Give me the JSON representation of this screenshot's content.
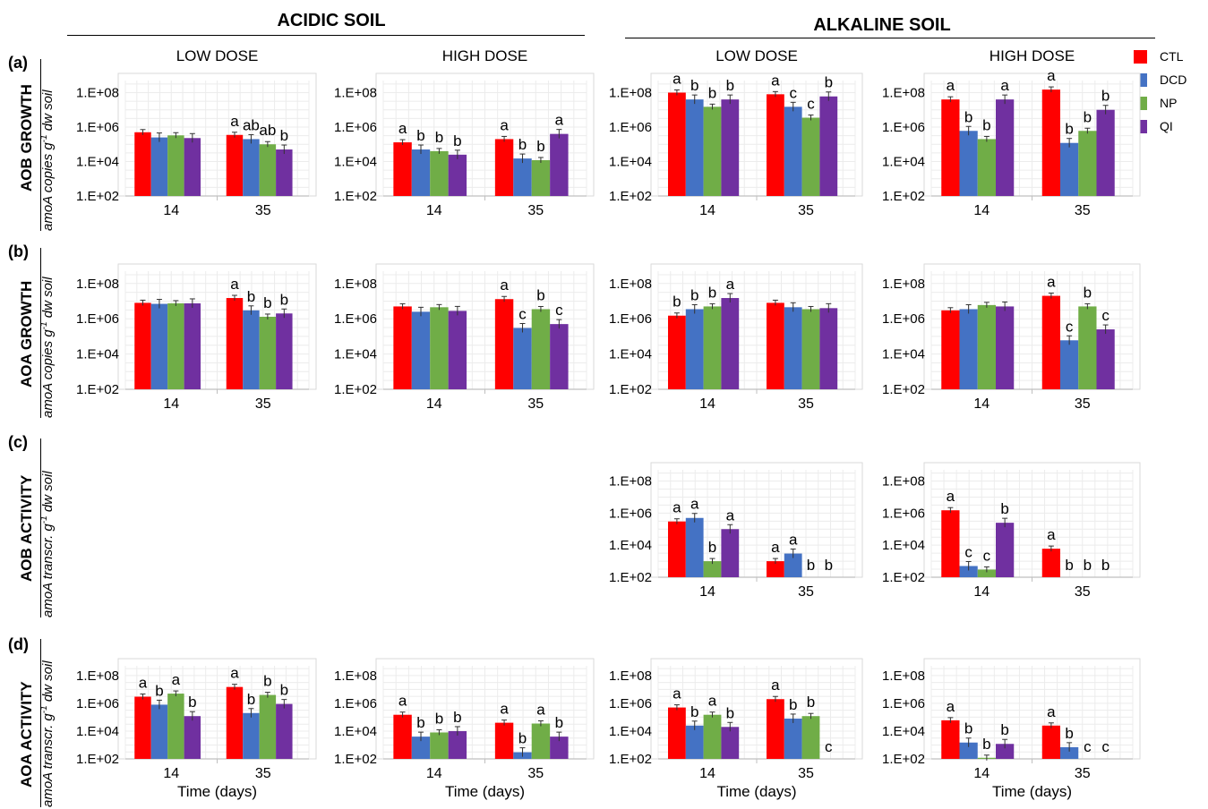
{
  "headers": {
    "acidic": "ACIDIC SOIL",
    "alkaline": "ALKALINE SOIL"
  },
  "rows": [
    {
      "letter": "(a)",
      "title": "AOB GROWTH",
      "ylabel_main": "amoA copies g",
      "ylabel_sup": "-1",
      "ylabel_tail": " dw soil"
    },
    {
      "letter": "(b)",
      "title": "AOA GROWTH",
      "ylabel_main": "amoA copies g",
      "ylabel_sup": "-1",
      "ylabel_tail": " dw soil"
    },
    {
      "letter": "(c)",
      "title": "AOB ACTIVITY",
      "ylabel_main": "amoA transcr. g",
      "ylabel_sup": "-1",
      "ylabel_tail": " dw soil"
    },
    {
      "letter": "(d)",
      "title": "AOA ACTIVITY",
      "ylabel_main": "amoA transcr. g",
      "ylabel_sup": "-1",
      "ylabel_tail": " dw soil"
    }
  ],
  "legend": [
    {
      "label": "CTL",
      "color": "#ff0000"
    },
    {
      "label": "DCD",
      "color": "#4472c4"
    },
    {
      "label": "NP",
      "color": "#70ad47"
    },
    {
      "label": "QI",
      "color": "#7030a0"
    }
  ],
  "chart_data": [
    {
      "type": "bar",
      "row": "a",
      "soil": "acidic",
      "title": "LOW DOSE",
      "xlabel": "",
      "y_scale": "log",
      "yticks": [
        "1.E+02",
        "1.E+04",
        "1.E+06",
        "1.E+08"
      ],
      "categories": [
        "14",
        "35"
      ],
      "series": [
        {
          "name": "CTL",
          "values": [
            500000,
            350000
          ],
          "letters": [
            "",
            "a"
          ]
        },
        {
          "name": "DCD",
          "values": [
            250000,
            200000
          ],
          "letters": [
            "",
            "ab"
          ]
        },
        {
          "name": "NP",
          "values": [
            330000,
            100000
          ],
          "letters": [
            "",
            "ab"
          ]
        },
        {
          "name": "QI",
          "values": [
            230000,
            50000
          ],
          "letters": [
            "",
            "b"
          ]
        }
      ]
    },
    {
      "type": "bar",
      "row": "a",
      "soil": "acidic",
      "title": "HIGH DOSE",
      "xlabel": "",
      "y_scale": "log",
      "yticks": [
        "1.E+02",
        "1.E+04",
        "1.E+06",
        "1.E+08"
      ],
      "categories": [
        "14",
        "35"
      ],
      "series": [
        {
          "name": "CTL",
          "values": [
            130000,
            200000
          ],
          "letters": [
            "a",
            "a"
          ]
        },
        {
          "name": "DCD",
          "values": [
            50000,
            15000
          ],
          "letters": [
            "b",
            "b"
          ]
        },
        {
          "name": "NP",
          "values": [
            40000,
            12000
          ],
          "letters": [
            "b",
            "b"
          ]
        },
        {
          "name": "QI",
          "values": [
            25000,
            400000
          ],
          "letters": [
            "b",
            "a"
          ]
        }
      ]
    },
    {
      "type": "bar",
      "row": "a",
      "soil": "alkaline",
      "title": "LOW DOSE",
      "xlabel": "",
      "y_scale": "log",
      "yticks": [
        "1.E+02",
        "1.E+04",
        "1.E+06",
        "1.E+08"
      ],
      "categories": [
        "14",
        "35"
      ],
      "series": [
        {
          "name": "CTL",
          "values": [
            100000000,
            80000000
          ],
          "letters": [
            "a",
            "a"
          ]
        },
        {
          "name": "DCD",
          "values": [
            40000000,
            15000000
          ],
          "letters": [
            "b",
            "c"
          ]
        },
        {
          "name": "NP",
          "values": [
            15000000,
            3500000
          ],
          "letters": [
            "b",
            "c"
          ]
        },
        {
          "name": "QI",
          "values": [
            40000000,
            60000000
          ],
          "letters": [
            "b",
            "b"
          ]
        }
      ]
    },
    {
      "type": "bar",
      "row": "a",
      "soil": "alkaline",
      "title": "HIGH DOSE",
      "xlabel": "",
      "y_scale": "log",
      "yticks": [
        "1.E+02",
        "1.E+04",
        "1.E+06",
        "1.E+08"
      ],
      "categories": [
        "14",
        "35"
      ],
      "series": [
        {
          "name": "CTL",
          "values": [
            40000000,
            150000000
          ],
          "letters": [
            "a",
            "a"
          ]
        },
        {
          "name": "DCD",
          "values": [
            600000,
            120000
          ],
          "letters": [
            "b",
            "b"
          ]
        },
        {
          "name": "NP",
          "values": [
            200000,
            600000
          ],
          "letters": [
            "b",
            "b"
          ]
        },
        {
          "name": "QI",
          "values": [
            40000000,
            10000000
          ],
          "letters": [
            "a",
            "b"
          ]
        }
      ]
    },
    {
      "type": "bar",
      "row": "b",
      "soil": "acidic",
      "title": "",
      "xlabel": "",
      "y_scale": "log",
      "yticks": [
        "1.E+02",
        "1.E+04",
        "1.E+06",
        "1.E+08"
      ],
      "categories": [
        "14",
        "35"
      ],
      "series": [
        {
          "name": "CTL",
          "values": [
            8000000,
            15000000
          ],
          "letters": [
            "",
            "a"
          ]
        },
        {
          "name": "DCD",
          "values": [
            7000000,
            3000000
          ],
          "letters": [
            "",
            "b"
          ]
        },
        {
          "name": "NP",
          "values": [
            7500000,
            1300000
          ],
          "letters": [
            "",
            "b"
          ]
        },
        {
          "name": "QI",
          "values": [
            7500000,
            2000000
          ],
          "letters": [
            "",
            "b"
          ]
        }
      ]
    },
    {
      "type": "bar",
      "row": "b",
      "soil": "acidic",
      "title": "",
      "xlabel": "",
      "y_scale": "log",
      "yticks": [
        "1.E+02",
        "1.E+04",
        "1.E+06",
        "1.E+08"
      ],
      "categories": [
        "14",
        "35"
      ],
      "series": [
        {
          "name": "CTL",
          "values": [
            5000000,
            13000000
          ],
          "letters": [
            "",
            "a"
          ]
        },
        {
          "name": "DCD",
          "values": [
            2500000,
            300000
          ],
          "letters": [
            "",
            "c"
          ]
        },
        {
          "name": "NP",
          "values": [
            4500000,
            3500000
          ],
          "letters": [
            "",
            "b"
          ]
        },
        {
          "name": "QI",
          "values": [
            2800000,
            500000
          ],
          "letters": [
            "",
            "c"
          ]
        }
      ]
    },
    {
      "type": "bar",
      "row": "b",
      "soil": "alkaline",
      "title": "",
      "xlabel": "",
      "y_scale": "log",
      "yticks": [
        "1.E+02",
        "1.E+04",
        "1.E+06",
        "1.E+08"
      ],
      "categories": [
        "14",
        "35"
      ],
      "series": [
        {
          "name": "CTL",
          "values": [
            1500000,
            8000000
          ],
          "letters": [
            "b",
            ""
          ]
        },
        {
          "name": "DCD",
          "values": [
            3500000,
            4500000
          ],
          "letters": [
            "b",
            ""
          ]
        },
        {
          "name": "NP",
          "values": [
            5000000,
            3500000
          ],
          "letters": [
            "b",
            ""
          ]
        },
        {
          "name": "QI",
          "values": [
            15000000,
            4000000
          ],
          "letters": [
            "a",
            ""
          ]
        }
      ]
    },
    {
      "type": "bar",
      "row": "b",
      "soil": "alkaline",
      "title": "",
      "xlabel": "",
      "y_scale": "log",
      "yticks": [
        "1.E+02",
        "1.E+04",
        "1.E+06",
        "1.E+08"
      ],
      "categories": [
        "14",
        "35"
      ],
      "series": [
        {
          "name": "CTL",
          "values": [
            3000000,
            20000000
          ],
          "letters": [
            "",
            "a"
          ]
        },
        {
          "name": "DCD",
          "values": [
            3500000,
            60000
          ],
          "letters": [
            "",
            "c"
          ]
        },
        {
          "name": "NP",
          "values": [
            6000000,
            5000000
          ],
          "letters": [
            "",
            "b"
          ]
        },
        {
          "name": "QI",
          "values": [
            5000000,
            250000
          ],
          "letters": [
            "",
            "c"
          ]
        }
      ]
    },
    {
      "type": "bar",
      "row": "c",
      "soil": "alkaline",
      "title": "",
      "xlabel": "",
      "y_scale": "log",
      "yticks": [
        "1.E+02",
        "1.E+04",
        "1.E+06",
        "1.E+08"
      ],
      "categories": [
        "14",
        "35"
      ],
      "series": [
        {
          "name": "CTL",
          "values": [
            300000,
            1000
          ],
          "letters": [
            "a",
            "a"
          ]
        },
        {
          "name": "DCD",
          "values": [
            500000,
            3000
          ],
          "letters": [
            "a",
            "a"
          ]
        },
        {
          "name": "NP",
          "values": [
            1000,
            0
          ],
          "letters": [
            "b",
            "b"
          ]
        },
        {
          "name": "QI",
          "values": [
            100000,
            0
          ],
          "letters": [
            "a",
            "b"
          ]
        }
      ]
    },
    {
      "type": "bar",
      "row": "c",
      "soil": "alkaline",
      "title": "",
      "xlabel": "",
      "y_scale": "log",
      "yticks": [
        "1.E+02",
        "1.E+04",
        "1.E+06",
        "1.E+08"
      ],
      "categories": [
        "14",
        "35"
      ],
      "series": [
        {
          "name": "CTL",
          "values": [
            1500000,
            6000
          ],
          "letters": [
            "a",
            "a"
          ]
        },
        {
          "name": "DCD",
          "values": [
            500,
            0
          ],
          "letters": [
            "c",
            "b"
          ]
        },
        {
          "name": "NP",
          "values": [
            300,
            0
          ],
          "letters": [
            "c",
            "b"
          ]
        },
        {
          "name": "QI",
          "values": [
            250000,
            0
          ],
          "letters": [
            "b",
            "b"
          ]
        }
      ]
    },
    {
      "type": "bar",
      "row": "d",
      "soil": "acidic",
      "title": "",
      "xlabel": "Time (days)",
      "y_scale": "log",
      "yticks": [
        "1.E+02",
        "1.E+04",
        "1.E+06",
        "1.E+08"
      ],
      "categories": [
        "14",
        "35"
      ],
      "series": [
        {
          "name": "CTL",
          "values": [
            3000000,
            15000000
          ],
          "letters": [
            "a",
            "a"
          ]
        },
        {
          "name": "DCD",
          "values": [
            800000,
            200000
          ],
          "letters": [
            "b",
            "b"
          ]
        },
        {
          "name": "NP",
          "values": [
            5000000,
            4000000
          ],
          "letters": [
            "a",
            "b"
          ]
        },
        {
          "name": "QI",
          "values": [
            120000,
            900000
          ],
          "letters": [
            "b",
            "b"
          ]
        }
      ]
    },
    {
      "type": "bar",
      "row": "d",
      "soil": "acidic",
      "title": "",
      "xlabel": "Time (days)",
      "y_scale": "log",
      "yticks": [
        "1.E+02",
        "1.E+04",
        "1.E+06",
        "1.E+08"
      ],
      "categories": [
        "14",
        "35"
      ],
      "series": [
        {
          "name": "CTL",
          "values": [
            150000,
            40000
          ],
          "letters": [
            "a",
            "a"
          ]
        },
        {
          "name": "DCD",
          "values": [
            4000,
            300
          ],
          "letters": [
            "b",
            "b"
          ]
        },
        {
          "name": "NP",
          "values": [
            8000,
            35000
          ],
          "letters": [
            "b",
            "a"
          ]
        },
        {
          "name": "QI",
          "values": [
            10000,
            4000
          ],
          "letters": [
            "b",
            "b"
          ]
        }
      ]
    },
    {
      "type": "bar",
      "row": "d",
      "soil": "alkaline",
      "title": "",
      "xlabel": "Time (days)",
      "y_scale": "log",
      "yticks": [
        "1.E+02",
        "1.E+04",
        "1.E+06",
        "1.E+08"
      ],
      "categories": [
        "14",
        "35"
      ],
      "series": [
        {
          "name": "CTL",
          "values": [
            500000,
            2000000
          ],
          "letters": [
            "a",
            "a"
          ]
        },
        {
          "name": "DCD",
          "values": [
            25000,
            80000
          ],
          "letters": [
            "b",
            "b"
          ]
        },
        {
          "name": "NP",
          "values": [
            150000,
            120000
          ],
          "letters": [
            "a",
            "b"
          ]
        },
        {
          "name": "QI",
          "values": [
            20000,
            0
          ],
          "letters": [
            "b",
            "c"
          ]
        }
      ]
    },
    {
      "type": "bar",
      "row": "d",
      "soil": "alkaline",
      "title": "",
      "xlabel": "Time (days)",
      "y_scale": "log",
      "yticks": [
        "1.E+02",
        "1.E+04",
        "1.E+06",
        "1.E+08"
      ],
      "categories": [
        "14",
        "35"
      ],
      "series": [
        {
          "name": "CTL",
          "values": [
            60000,
            25000
          ],
          "letters": [
            "a",
            "a"
          ]
        },
        {
          "name": "DCD",
          "values": [
            1500,
            700
          ],
          "letters": [
            "b",
            "b"
          ]
        },
        {
          "name": "NP",
          "values": [
            120,
            0
          ],
          "letters": [
            "b",
            "c"
          ]
        },
        {
          "name": "QI",
          "values": [
            1200,
            0
          ],
          "letters": [
            "b",
            "c"
          ]
        }
      ]
    }
  ]
}
